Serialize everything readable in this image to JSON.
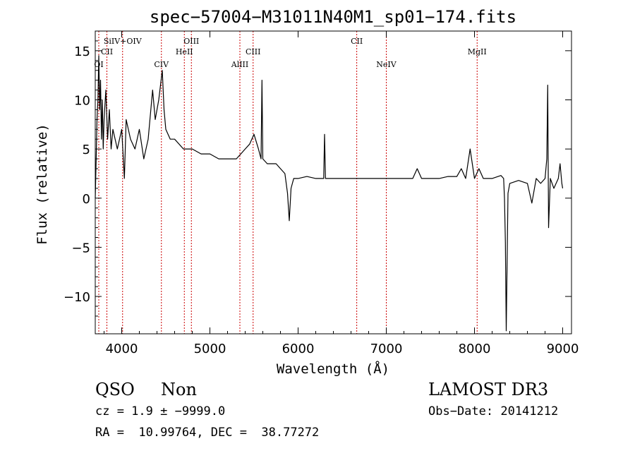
{
  "chart_data": {
    "type": "line",
    "title": "spec−57004−M31011N40M1_sp01−174.fits",
    "xlabel": "Wavelength (Å)",
    "ylabel": "Flux (relative)",
    "xlim": [
      3700,
      9100
    ],
    "ylim": [
      -13.8,
      17.0
    ],
    "x_ticks": [
      4000,
      5000,
      6000,
      7000,
      8000,
      9000
    ],
    "y_ticks": [
      -10,
      -5,
      0,
      5,
      10,
      15
    ],
    "y_tick_labels": [
      "−10",
      "−5",
      "0",
      "5",
      "10",
      "15"
    ],
    "grid": false,
    "line_color": "#000000",
    "marker_color": "#cc0000",
    "emission_lines": [
      {
        "name": "OI",
        "x": 3740
      },
      {
        "name": "CII",
        "x": 3832
      },
      {
        "name": "SiIV+OIV",
        "x": 4010
      },
      {
        "name": "CIV",
        "x": 4450
      },
      {
        "name": "HeII",
        "x": 4710
      },
      {
        "name": "OIII",
        "x": 4790
      },
      {
        "name": "AlIII",
        "x": 5340
      },
      {
        "name": "CIII",
        "x": 5490
      },
      {
        "name": "CII",
        "x": 6665
      },
      {
        "name": "NeIV",
        "x": 7000
      },
      {
        "name": "MgII",
        "x": 8030
      }
    ],
    "series": [
      {
        "x": [
          3700,
          3710,
          3720,
          3730,
          3740,
          3750,
          3760,
          3770,
          3780,
          3790,
          3800,
          3820,
          3840,
          3860,
          3880,
          3900,
          3950,
          4000,
          4030,
          4050,
          4100,
          4150,
          4200,
          4250,
          4300,
          4350,
          4380,
          4420,
          4460,
          4480,
          4500,
          4550,
          4600,
          4700,
          4800,
          4900,
          5000,
          5100,
          5200,
          5300,
          5350,
          5400,
          5450,
          5500,
          5550,
          5580,
          5590,
          5600,
          5650,
          5700,
          5750,
          5800,
          5850,
          5880,
          5900,
          5920,
          5950,
          6000,
          6100,
          6200,
          6290,
          6300,
          6310,
          6400,
          6500,
          6600,
          6700,
          6800,
          6900,
          7000,
          7100,
          7200,
          7300,
          7350,
          7400,
          7500,
          7600,
          7700,
          7800,
          7850,
          7900,
          7950,
          8000,
          8050,
          8100,
          8200,
          8300,
          8330,
          8340,
          8350,
          8360,
          8380,
          8400,
          8500,
          8600,
          8650,
          8700,
          8750,
          8800,
          8820,
          8830,
          8840,
          8860,
          8880,
          8900,
          8950,
          8970,
          8990,
          9000
        ],
        "y": [
          0,
          4,
          8,
          10,
          14.5,
          9,
          12,
          6,
          10,
          5,
          8,
          11,
          6,
          9,
          5,
          7,
          5,
          7,
          2,
          8,
          6,
          5,
          7,
          4,
          6,
          11,
          8,
          10,
          13,
          9,
          7,
          6,
          6,
          5,
          5,
          4.5,
          4.5,
          4,
          4,
          4,
          4.5,
          5,
          5.5,
          6.5,
          5,
          4,
          12,
          4,
          3.5,
          3.5,
          3.5,
          3,
          2.5,
          0.5,
          -2.3,
          1,
          2,
          2,
          2.2,
          2,
          2,
          6.5,
          2,
          2,
          2,
          2,
          2,
          2,
          2,
          2,
          2,
          2,
          2,
          3,
          2,
          2,
          2,
          2.2,
          2.2,
          3,
          2,
          5,
          2,
          3,
          2,
          2,
          2.3,
          2,
          0,
          -4.5,
          -13.5,
          0.5,
          1.5,
          1.8,
          1.5,
          -0.5,
          2,
          1.5,
          2,
          4,
          11.5,
          -3,
          2,
          1.5,
          1,
          2,
          3.5,
          1.5,
          1
        ]
      }
    ]
  },
  "footer": {
    "class_label": "QSO",
    "subclass_label": "Non",
    "survey": "LAMOST DR3",
    "cz": "cz = 1.9 ± −9999.0",
    "obs_date": "Obs−Date: 20141212",
    "coords": "RA =  10.99764, DEC =  38.77272"
  }
}
